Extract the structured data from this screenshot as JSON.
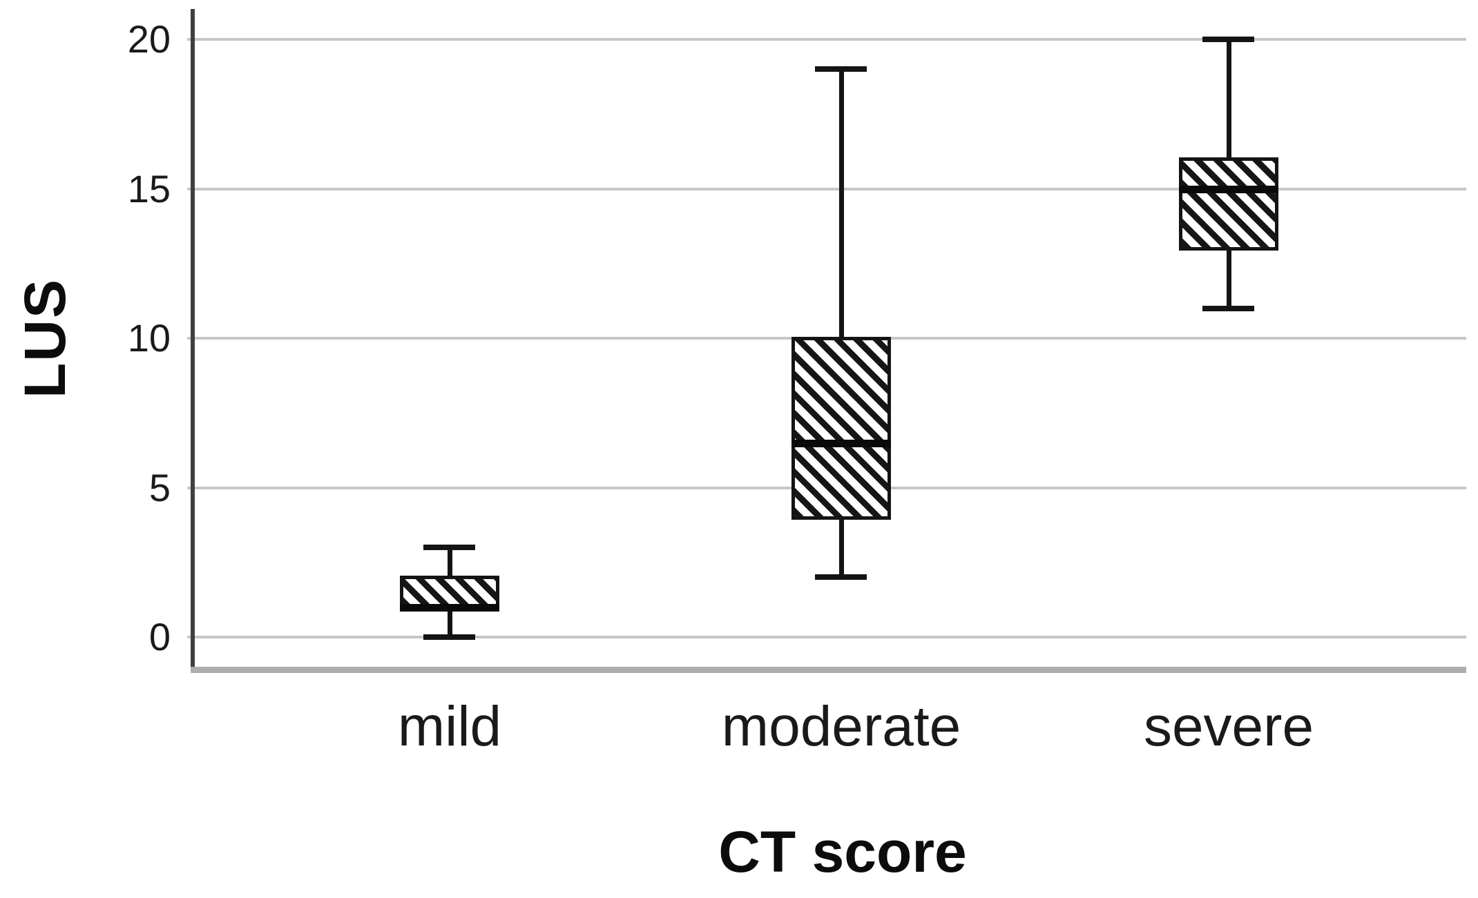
{
  "figure": {
    "background": "#ffffff",
    "y_axis_label": "LUS",
    "x_axis_label": "CT score"
  },
  "chart_data": {
    "type": "box",
    "title": "",
    "xlabel": "CT score",
    "ylabel": "LUS",
    "categories": [
      "mild",
      "moderate",
      "severe"
    ],
    "yticks": [
      0,
      5,
      10,
      15,
      20
    ],
    "ylim": [
      -1.1,
      21
    ],
    "grid": "horizontal-only",
    "legend": "none",
    "series": [
      {
        "name": "mild",
        "whisker_low": 0,
        "q1": 1,
        "median": 1,
        "q3": 2,
        "whisker_high": 3
      },
      {
        "name": "moderate",
        "whisker_low": 2,
        "q1": 4,
        "median": 6.5,
        "q3": 10,
        "whisker_high": 19
      },
      {
        "name": "severe",
        "whisker_low": 11,
        "q1": 13,
        "median": 15,
        "q3": 16,
        "whisker_high": 20
      }
    ],
    "style": {
      "hatch": "diagonal-backslash",
      "box_border_color": "#141414",
      "median_color": "#0a0a0a",
      "whisker_color": "#141414",
      "grid_color": "#c7c7c7",
      "yaxis_color": "#3f3f3f",
      "baseline_color": "#adadad",
      "box_fill": "#ffffff"
    }
  }
}
